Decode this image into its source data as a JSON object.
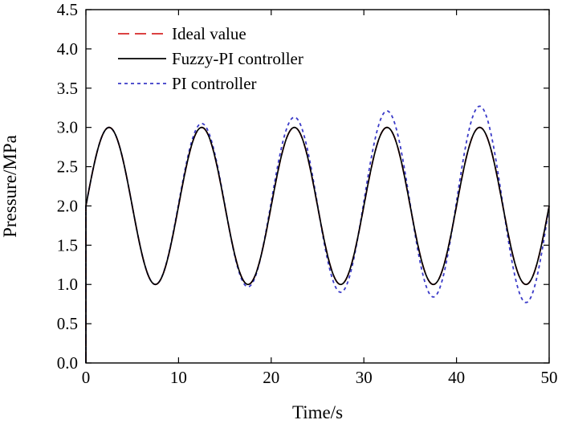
{
  "chart_data": {
    "type": "line",
    "xlabel": "Time/s",
    "ylabel": "Pressure/MPa",
    "xlim": [
      0,
      50
    ],
    "ylim": [
      0,
      4.5
    ],
    "xticks": [
      0,
      10,
      20,
      30,
      40,
      50
    ],
    "yticks": [
      0.0,
      0.5,
      1.0,
      1.5,
      2.0,
      2.5,
      3.0,
      3.5,
      4.0,
      4.5
    ],
    "xtick_labels": [
      "0",
      "10",
      "20",
      "30",
      "40",
      "50"
    ],
    "ytick_labels": [
      "0.0",
      "0.5",
      "1.0",
      "1.5",
      "2.0",
      "2.5",
      "3.0",
      "3.5",
      "4.0",
      "4.5"
    ],
    "grid": false,
    "legend_position": "top-left",
    "signal": {
      "form": "sinusoid",
      "mean": 2.0,
      "amplitude": 1.0,
      "period_s": 10
    },
    "series": [
      {
        "name": "Ideal value",
        "style": "dashed",
        "color": "#d62728",
        "peaks": [
          [
            2.5,
            3.0
          ],
          [
            12.5,
            3.0
          ],
          [
            22.5,
            3.0
          ],
          [
            32.5,
            3.0
          ],
          [
            42.5,
            3.0
          ]
        ],
        "troughs": [
          [
            7.5,
            1.0
          ],
          [
            17.5,
            1.0
          ],
          [
            27.5,
            1.0
          ],
          [
            37.5,
            1.0
          ],
          [
            47.5,
            1.0
          ]
        ]
      },
      {
        "name": "Fuzzy-PI controller",
        "style": "solid",
        "color": "#000000",
        "peaks": [
          [
            2.5,
            3.0
          ],
          [
            12.5,
            3.0
          ],
          [
            22.5,
            3.0
          ],
          [
            32.5,
            3.0
          ],
          [
            42.5,
            3.0
          ]
        ],
        "troughs": [
          [
            7.5,
            1.0
          ],
          [
            17.5,
            1.0
          ],
          [
            27.5,
            1.0
          ],
          [
            37.5,
            1.0
          ],
          [
            47.5,
            1.0
          ]
        ]
      },
      {
        "name": "PI controller",
        "style": "dotted",
        "color": "#3a3ac8",
        "peaks": [
          [
            2.5,
            3.0
          ],
          [
            12.5,
            3.05
          ],
          [
            22.5,
            3.13
          ],
          [
            32.5,
            3.21
          ],
          [
            42.5,
            3.27
          ]
        ],
        "troughs": [
          [
            7.5,
            1.0
          ],
          [
            17.5,
            0.97
          ],
          [
            27.5,
            0.9
          ],
          [
            37.5,
            0.84
          ],
          [
            47.5,
            0.77
          ]
        ]
      }
    ]
  }
}
